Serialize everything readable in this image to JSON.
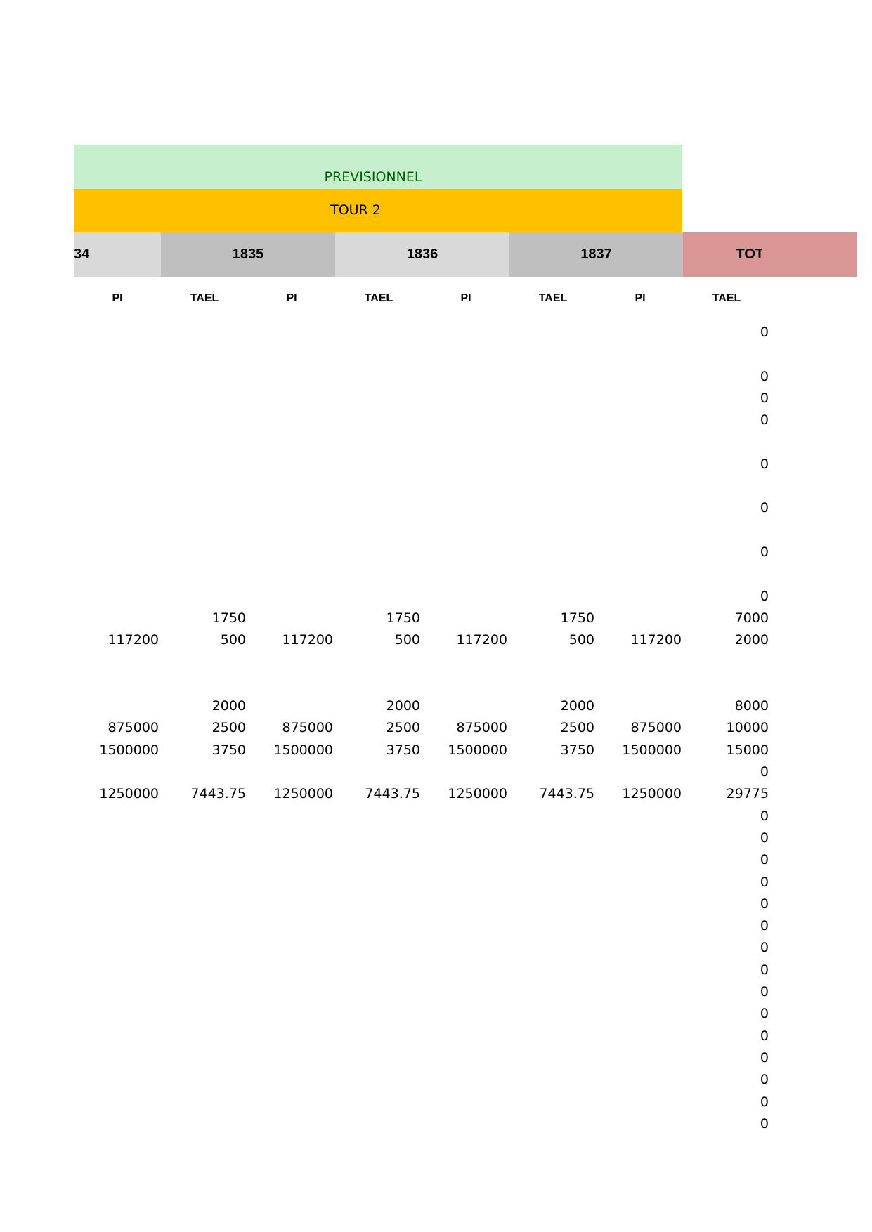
{
  "banner": {
    "previsionnel": "PREVISIONNEL",
    "tour": "TOUR 2"
  },
  "years": [
    "34",
    "1835",
    "1836",
    "1837",
    "TOT"
  ],
  "col_headers": [
    "PI",
    "TAEL",
    "PI",
    "TAEL",
    "PI",
    "TAEL",
    "PI",
    "TAEL"
  ],
  "rows": [
    {
      "cells": [
        "",
        "",
        "",
        "",
        "",
        "",
        "",
        "",
        "0"
      ]
    },
    {
      "cells": [
        "",
        "",
        "",
        "",
        "",
        "",
        "",
        "",
        ""
      ]
    },
    {
      "cells": [
        "",
        "",
        "",
        "",
        "",
        "",
        "",
        "",
        "0"
      ]
    },
    {
      "cells": [
        "",
        "",
        "",
        "",
        "",
        "",
        "",
        "",
        "0"
      ]
    },
    {
      "cells": [
        "",
        "",
        "",
        "",
        "",
        "",
        "",
        "",
        "0"
      ]
    },
    {
      "cells": [
        "",
        "",
        "",
        "",
        "",
        "",
        "",
        "",
        ""
      ]
    },
    {
      "cells": [
        "",
        "",
        "",
        "",
        "",
        "",
        "",
        "",
        "0"
      ]
    },
    {
      "cells": [
        "",
        "",
        "",
        "",
        "",
        "",
        "",
        "",
        ""
      ]
    },
    {
      "cells": [
        "",
        "",
        "",
        "",
        "",
        "",
        "",
        "",
        "0"
      ]
    },
    {
      "cells": [
        "",
        "",
        "",
        "",
        "",
        "",
        "",
        "",
        ""
      ]
    },
    {
      "cells": [
        "",
        "",
        "",
        "",
        "",
        "",
        "",
        "",
        "0"
      ]
    },
    {
      "cells": [
        "",
        "",
        "",
        "",
        "",
        "",
        "",
        "",
        ""
      ]
    },
    {
      "cells": [
        "",
        "",
        "",
        "",
        "",
        "",
        "",
        "",
        "0"
      ]
    },
    {
      "cells": [
        "",
        "1750",
        "",
        "1750",
        "",
        "1750",
        "",
        "",
        "7000"
      ]
    },
    {
      "cells": [
        "117200",
        "500",
        "117200",
        "500",
        "117200",
        "500",
        "117200",
        "",
        "2000"
      ]
    },
    {
      "cells": [
        "",
        "",
        "",
        "",
        "",
        "",
        "",
        "",
        ""
      ]
    },
    {
      "cells": [
        "",
        "",
        "",
        "",
        "",
        "",
        "",
        "",
        ""
      ]
    },
    {
      "cells": [
        "",
        "2000",
        "",
        "2000",
        "",
        "2000",
        "",
        "",
        "8000"
      ]
    },
    {
      "cells": [
        "875000",
        "2500",
        "875000",
        "2500",
        "875000",
        "2500",
        "875000",
        "",
        "10000"
      ]
    },
    {
      "cells": [
        "1500000",
        "3750",
        "1500000",
        "3750",
        "1500000",
        "3750",
        "1500000",
        "",
        "15000"
      ]
    },
    {
      "cells": [
        "",
        "",
        "",
        "",
        "",
        "",
        "",
        "",
        "0"
      ]
    },
    {
      "cells": [
        "1250000",
        "7443.75",
        "1250000",
        "7443.75",
        "1250000",
        "7443.75",
        "1250000",
        "",
        "29775"
      ]
    },
    {
      "cells": [
        "",
        "",
        "",
        "",
        "",
        "",
        "",
        "",
        "0"
      ]
    },
    {
      "cells": [
        "",
        "",
        "",
        "",
        "",
        "",
        "",
        "",
        "0"
      ]
    },
    {
      "cells": [
        "",
        "",
        "",
        "",
        "",
        "",
        "",
        "",
        "0"
      ]
    },
    {
      "cells": [
        "",
        "",
        "",
        "",
        "",
        "",
        "",
        "",
        "0"
      ]
    },
    {
      "cells": [
        "",
        "",
        "",
        "",
        "",
        "",
        "",
        "",
        "0"
      ]
    },
    {
      "cells": [
        "",
        "",
        "",
        "",
        "",
        "",
        "",
        "",
        "0"
      ]
    },
    {
      "cells": [
        "",
        "",
        "",
        "",
        "",
        "",
        "",
        "",
        "0"
      ]
    },
    {
      "cells": [
        "",
        "",
        "",
        "",
        "",
        "",
        "",
        "",
        "0"
      ]
    },
    {
      "cells": [
        "",
        "",
        "",
        "",
        "",
        "",
        "",
        "",
        "0"
      ]
    },
    {
      "cells": [
        "",
        "",
        "",
        "",
        "",
        "",
        "",
        "",
        "0"
      ]
    },
    {
      "cells": [
        "",
        "",
        "",
        "",
        "",
        "",
        "",
        "",
        "0"
      ]
    },
    {
      "cells": [
        "",
        "",
        "",
        "",
        "",
        "",
        "",
        "",
        "0"
      ]
    },
    {
      "cells": [
        "",
        "",
        "",
        "",
        "",
        "",
        "",
        "",
        "0"
      ]
    },
    {
      "cells": [
        "",
        "",
        "",
        "",
        "",
        "",
        "",
        "",
        "0"
      ]
    },
    {
      "cells": [
        "",
        "",
        "",
        "",
        "",
        "",
        "",
        "",
        "0"
      ]
    }
  ]
}
